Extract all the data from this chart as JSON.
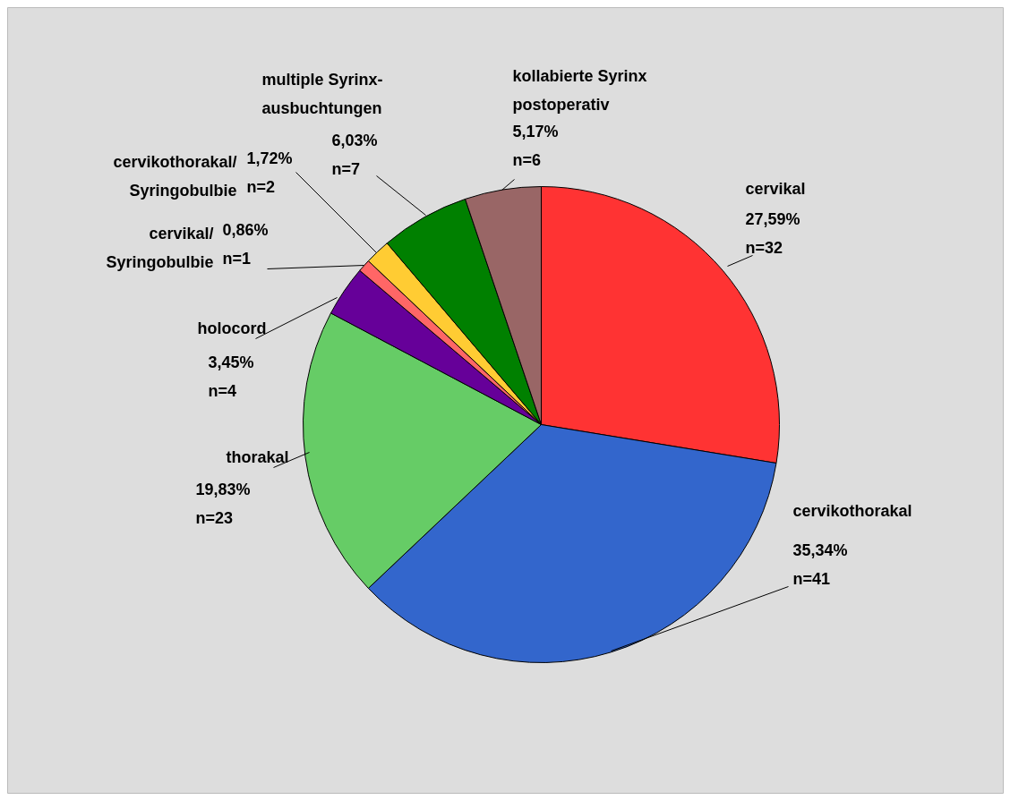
{
  "chart_data": {
    "type": "pie",
    "categories": [
      "cervikal",
      "cervikothorakal",
      "thorakal",
      "holocord",
      "cervikal/\nSyringobulbie",
      "cervikothorakal/\nSyringobulbie",
      "multiple Syrinx-\nausbuchtungen",
      "kollabierte Syrinx\npostoperativ"
    ],
    "values": [
      32,
      41,
      23,
      4,
      1,
      2,
      7,
      6
    ],
    "colors": [
      "#ff3333",
      "#3366cc",
      "#66cc66",
      "#660099",
      "#ff6666",
      "#ffcc33",
      "#008000",
      "#996666"
    ],
    "value_labels": [
      "27,59%\nn=32",
      "35,34%\nn=41",
      "19,83%\nn=23",
      "3,45%\nn=4",
      "0,86%\nn=1",
      "1,72%\nn=2",
      "6,03%\nn=7",
      "5,17%\nn=6"
    ]
  }
}
